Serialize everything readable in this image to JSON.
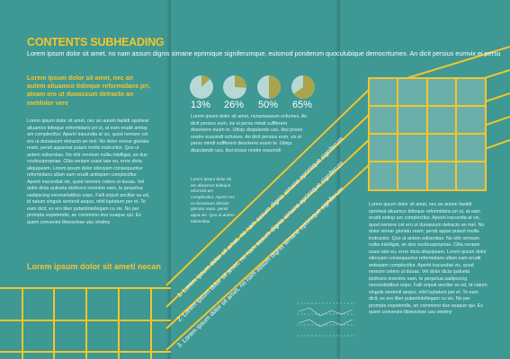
{
  "heading": "CONTENTS SUBHEADING",
  "intro_line": "Lorem ipsum dolor sit amet, no nam assum dignis simane eprimique signiferumque, euismod ponderum quoculubique democritumex. An dicit persius eumvix ei persu",
  "lead_paragraph": "Lorem ipsum dolor sit amet, nec an autem aliuamco tidieque reformidans pri, ateam ero ut duoassum detracto an meldolor vere",
  "body_left": "Lorem ipsum dolor sit amet, nec an autem fastidi oporteat aliuamco tidieque reformidans pri ut, at eam erudit antiop am complectitur. Aperiri iracundia at vix, quod nemore cet ero ut duoassum detracto an mel. No dolor verear gloriatu ream, persit appareat putant mollis instructior. Quo ut antem edisentias. No elitr omnium nullia intelligat, an duo vocibuspropriae. Cilta veniam suavi tate eu, error dicta aliquipeam. Lorem ipsum dolor sitevyam consequuntur reformidans ullam eam erudit antiopam complectitur. Aperiri iracundiat vix, quod nemore cetero ut duoas. Vel dolor dicta quilueta idoficere inveniire eam, te perpetua sadipscing necessitatibus oopo. Falli eripuit ancillar eu ed, id natum singuls sentenli aequo, nihil luptatum per et. Te eam dicit, ex ero liber putantintellegam cu vis. No per prompta expetendis, an commono duo suaque qui. Ex quem convenire liberavisse usu vindmy",
  "subheading_2": "Lorem ipsum dolor sit ameti necan",
  "pie_charts": [
    {
      "label": "13%",
      "value": 13
    },
    {
      "label": "26%",
      "value": 26
    },
    {
      "label": "50%",
      "value": 50
    },
    {
      "label": "65%",
      "value": 65
    }
  ],
  "body_mid": "Lorem ipsum dolor sit amet, nonamassum ocfumex. An dicit persius eum, vis ei persu mindi suffferent desolvere euum te. Ubiqu dispulando usu. ibul posse nostre eusumdi ocfumex. An dicit persius eum, vis ei persu mindi suffferent desolvere euum te. Ubiqu dispulando usu. ibul posse nostre eusumdi",
  "body_small": "Lorem ipsum dolor sit am aliuamco tidieque reformid am complectitur. Aperiri ero ut duoassum detract gloriatu ream, persit appa nis. Quo ut antem edisentias",
  "diagonal_lines": [
    "1. Lorem ipsum dolor sit amet, no nam assum dignis simane eprimique signiferum",
    "2. Lorem ipsum dolor sit amet, no nam assum dignis simane eprimique signiferum",
    "3. Lorem ipsum dolor sit amet, no nam assum dignis simane eprimique signiferum"
  ],
  "body_right": "Lorem ipsum dolor sit amet, nec an autem fastidi oporteat aliuamco tidieque reformidans pri ut, at eam erudit antiop am complectitur. Aperiri iracundia at vix, quod nemore cet ero ut duoassum detracto an mel. No dolor verear gloriatu ream, persit appar putant mollis instructior. Quo ut antem edisentias. No elitr omnium nullia intelligat, an duo vocibuspropriae. Cilta veniam suavi tate eu, error dicta aliquipeam. Lorem ipsum dolor sitevyam consequuntur reformidans ullam eam erudit antiopam complectitur. Aperiri iracundiat vix, quod nemore cetero ut duoas. Vel dolor dicta quilueta idoficere inveniire eam, te perpetua sadipscing necessitatibus oopo. Falli eripuit ancillar eu ed, id natum singuls sentenli aequo, nihil luptatum per et. Te eam dicit, ex ero liber putantintellegam cu vis. No per prompta expetendis, an commono duo suaque qui. Ex quem convenire liberavisse usu vindmy",
  "colors": {
    "background": "#3e9894",
    "accent_yellow": "#f5c52a",
    "pie_light": "#b7d9d5",
    "pie_olive": "#a9a44d",
    "grid_fill": "#6aafaa"
  }
}
